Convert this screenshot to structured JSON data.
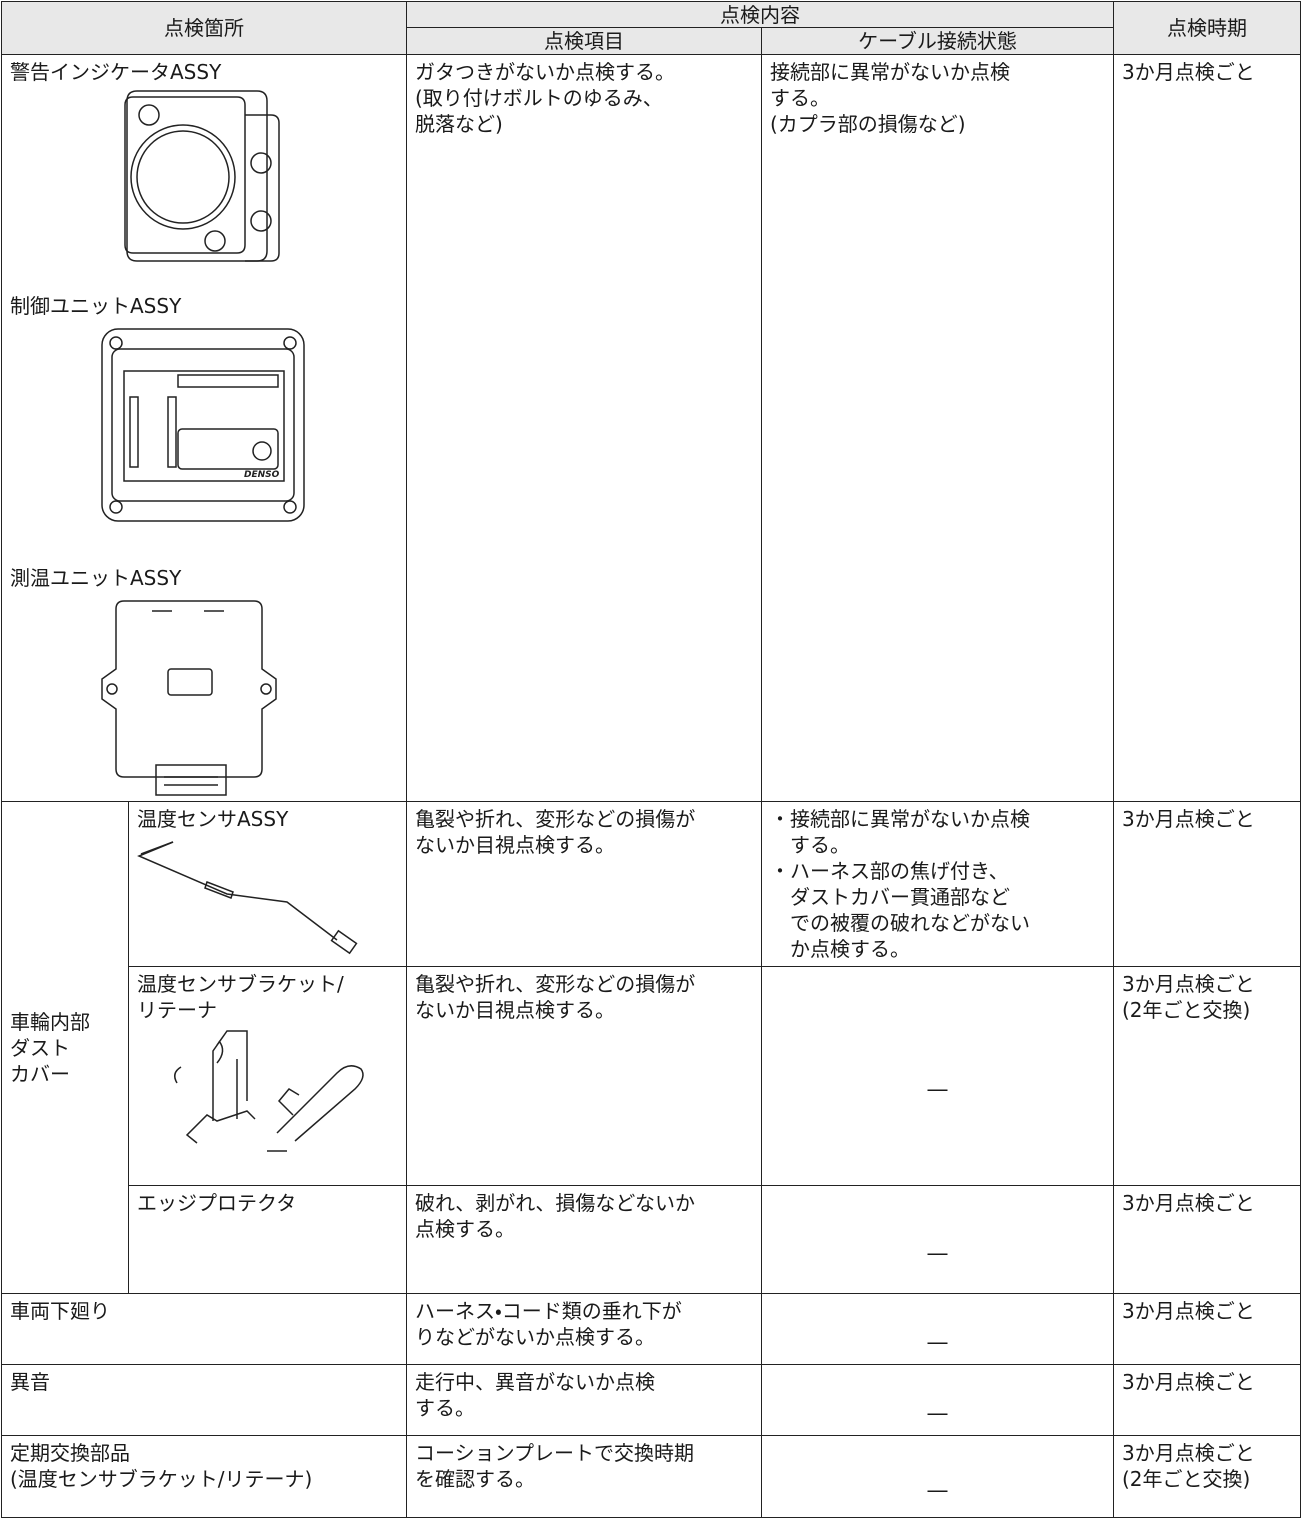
{
  "header": {
    "location": "点検箇所",
    "content": "点検内容",
    "item": "点検項目",
    "cable": "ケーブル接続状態",
    "timing": "点検時期"
  },
  "rows": [
    {
      "parts": [
        "警告インジケータASSY",
        "制御ユニットASSY",
        "測温ユニットASSY"
      ],
      "item": [
        "ガタつきがないか点検する。",
        "(取り付けボルトのゆるみ、",
        "脱落など)"
      ],
      "cable": [
        "接続部に異常がないか点検",
        "する。",
        "(カプラ部の損傷など)"
      ],
      "timing": [
        "3か月点検ごと"
      ]
    },
    {
      "group": [
        "車輪内部",
        "ダスト",
        "カバー"
      ],
      "part": [
        "温度センサASSY"
      ],
      "item": [
        "亀裂や折れ、変形などの損傷が",
        "ないか目視点検する。"
      ],
      "bullet": "・",
      "cable_bullets": [
        [
          "接続部に異常がないか点検",
          "する。"
        ],
        [
          "ハーネス部の焦げ付き、",
          "ダストカバー貫通部など",
          "での被覆の破れなどがない",
          "か点検する。"
        ]
      ],
      "timing": [
        "3か月点検ごと"
      ]
    },
    {
      "part": [
        "温度センサブラケット/",
        "リテーナ"
      ],
      "item": [
        "亀裂や折れ、変形などの損傷が",
        "ないか目視点検する。"
      ],
      "cable": [
        "―"
      ],
      "timing": [
        "3か月点検ごと",
        "(2年ごと交換)"
      ]
    },
    {
      "part": [
        "エッジプロテクタ"
      ],
      "item": [
        "破れ、剥がれ、損傷などないか",
        "点検する。"
      ],
      "cable": [
        "―"
      ],
      "timing": [
        "3か月点検ごと"
      ]
    },
    {
      "part": [
        "車両下廻り"
      ],
      "item": [
        "ハーネス・コード類の垂れ下が",
        "りなどがないか点検する。"
      ],
      "cable": [
        "―"
      ],
      "timing": [
        "3か月点検ごと"
      ]
    },
    {
      "part": [
        "異音"
      ],
      "item": [
        "走行中、異音がないか点検",
        "する。"
      ],
      "cable": [
        "―"
      ],
      "timing": [
        "3か月点検ごと"
      ]
    },
    {
      "part": [
        "定期交換部品",
        "(温度センサブラケット/リテーナ)"
      ],
      "item": [
        "コーションプレートで交換時期",
        "を確認する。"
      ],
      "cable": [
        "―"
      ],
      "timing": [
        "3か月点検ごと",
        "(2年ごと交換)"
      ]
    }
  ],
  "logo": "DENSO"
}
